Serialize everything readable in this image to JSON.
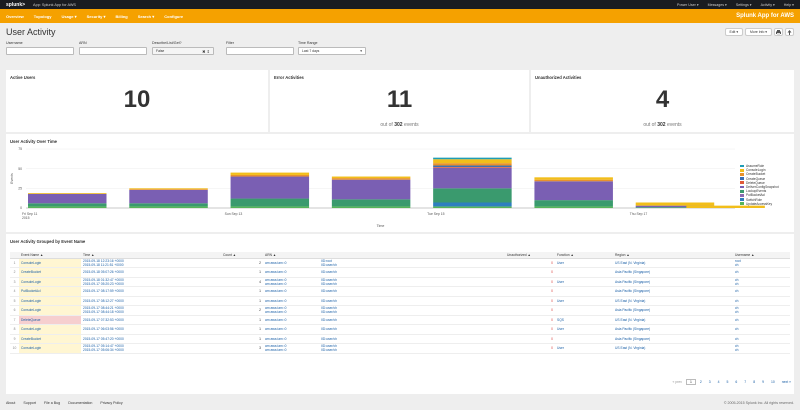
{
  "topbar": {
    "logo": "splunk>",
    "app_label": "App: Splunk App for AWS",
    "user": "Power User ▾",
    "messages": "Messages ▾",
    "settings": "Settings ▾",
    "activity": "Activity ▾",
    "help": "Help ▾"
  },
  "appbar": {
    "nav": [
      "Overview",
      "Topology",
      "Usage ▾",
      "Security ▾",
      "Billing",
      "Search ▾",
      "Configure"
    ],
    "brand": "Splunk App for AWS"
  },
  "header": {
    "title": "User Activity",
    "edit": "Edit ▾",
    "more_info": "More Info ▾"
  },
  "filters": [
    {
      "label": "Username",
      "value": ""
    },
    {
      "label": "ARN",
      "value": ""
    },
    {
      "label": "Describe/List/Get?",
      "value": "False"
    },
    {
      "label": "Filter",
      "value": ""
    },
    {
      "label": "Time Range",
      "value": "Last 7 days"
    }
  ],
  "kpis": [
    {
      "title": "Active Users",
      "value": "10",
      "sub_prefix": "",
      "sub_total": "",
      "sub_suffix": ""
    },
    {
      "title": "Error Activities",
      "value": "11",
      "sub_prefix": "out of ",
      "sub_total": "302",
      "sub_suffix": " events"
    },
    {
      "title": "Unauthorized Activities",
      "value": "4",
      "sub_prefix": "out of ",
      "sub_total": "302",
      "sub_suffix": " events"
    }
  ],
  "chart_data": {
    "type": "bar",
    "stacked": true,
    "title": "User Activity Over Time",
    "xlabel": "Time",
    "ylabel": "Events",
    "ylim": [
      0,
      75
    ],
    "yticks": [
      0,
      25,
      50,
      75
    ],
    "x_tick_labels": [
      {
        "idx": 0,
        "line1": "Fri Sep 11",
        "line2": "2015"
      },
      {
        "idx": 4,
        "line1": "Sun Sep 13",
        "line2": ""
      },
      {
        "idx": 8,
        "line1": "Tue Sep 15",
        "line2": ""
      },
      {
        "idx": 12,
        "line1": "Thu Sep 17",
        "line2": ""
      }
    ],
    "num_slots": 14,
    "bar_slots": [
      0,
      2,
      4,
      6,
      8,
      10,
      12,
      13
    ],
    "series": [
      {
        "name": "UpdateAccessKey",
        "color": "#56b45a",
        "values": [
          2,
          2,
          2,
          2,
          2,
          2,
          0,
          0
        ]
      },
      {
        "name": "SwitchRole",
        "color": "#2e7fbf",
        "values": [
          0,
          0,
          0,
          0,
          5,
          0,
          0,
          0
        ]
      },
      {
        "name": "PutBucketAcl",
        "color": "#8c6bb1",
        "values": [
          0,
          0,
          0,
          0,
          0,
          0,
          0,
          0
        ]
      },
      {
        "name": "LookupEvents",
        "color": "#3a9a6e",
        "values": [
          4,
          4,
          10,
          9,
          18,
          8,
          1,
          0
        ]
      },
      {
        "name": "DeliverConfigSnapshot",
        "color": "#7a5fb3",
        "values": [
          12,
          17,
          28,
          25,
          26,
          24,
          2,
          0
        ]
      },
      {
        "name": "DeleteQueue",
        "color": "#e05a3a",
        "values": [
          0,
          0,
          0,
          0,
          1,
          0,
          0,
          0
        ]
      },
      {
        "name": "CreateQueue",
        "color": "#3b6fb6",
        "values": [
          0,
          0,
          0,
          0,
          2,
          0,
          0,
          0
        ]
      },
      {
        "name": "CreateBucket",
        "color": "#e8912d",
        "values": [
          0,
          1,
          2,
          2,
          3,
          2,
          0,
          0
        ]
      },
      {
        "name": "ConsoleLogin",
        "color": "#f2be1a",
        "values": [
          1,
          1,
          3,
          2,
          5,
          3,
          4,
          3
        ]
      },
      {
        "name": "AssumeRole",
        "color": "#1f9db5",
        "values": [
          0,
          0,
          0,
          0,
          2,
          0,
          0,
          0
        ]
      }
    ]
  },
  "table": {
    "title": "User Activity Grouped by Event Name",
    "columns": [
      "",
      "Event Name ▲",
      "Time ▲",
      "Count ▲",
      "ARN ▲",
      "",
      "Unauthorized ▲",
      "Function ▲",
      "Region ▲",
      "Username ▲"
    ],
    "rows": [
      {
        "idx": "1",
        "event": "ConsoleLogin",
        "time1": "2015-09-18 12:23:16 +0000",
        "time2": "2015-09-18 11:21:51 +0000",
        "count": "2",
        "arn1": "arn:aws:iam::0",
        "arn2": "",
        "user1": "IID:root",
        "user2": "IID:user/ch",
        "unauth": "0",
        "func": "User",
        "region": "US East (N. Virginia)",
        "username1": "root",
        "username2": "ch",
        "red": false
      },
      {
        "idx": "2",
        "event": "CreateBucket",
        "time1": "2015-09-18 05:07:26 +0000",
        "time2": "",
        "count": "1",
        "arn1": "arn:aws:iam::0",
        "arn2": "",
        "user1": "IID:user/ch",
        "user2": "",
        "unauth": "0",
        "func": "",
        "region": "Asia Pacific (Singapore)",
        "username1": "ch",
        "username2": "",
        "red": false
      },
      {
        "idx": "3",
        "event": "ConsoleLogin",
        "time1": "2015-09-18 01:32:47 +0000",
        "time2": "2015-09-17 05:20:23 +0000",
        "count": "4",
        "arn1": "arn:aws:iam::0",
        "arn2": "arn:aws:iam::0",
        "user1": "IID:user/ch",
        "user2": "IID:user/ch",
        "unauth": "0",
        "func": "User",
        "region": "Asia Pacific (Singapore)",
        "username1": "ch",
        "username2": "ch",
        "red": false
      },
      {
        "idx": "4",
        "event": "PutBucketAcl",
        "time1": "2015-09-17 08:17:59 +0000",
        "time2": "",
        "count": "1",
        "arn1": "arn:aws:iam::0",
        "arn2": "",
        "user1": "IID:user/ch",
        "user2": "",
        "unauth": "0",
        "func": "",
        "region": "Asia Pacific (Singapore)",
        "username1": "ch",
        "username2": "",
        "red": false
      },
      {
        "idx": "5",
        "event": "ConsoleLogin",
        "time1": "2015-09-17 08:12:27 +0000",
        "time2": "",
        "count": "1",
        "arn1": "arn:aws:iam::0",
        "arn2": "",
        "user1": "IID:user/ch",
        "user2": "",
        "unauth": "0",
        "func": "User",
        "region": "US East (N. Virginia)",
        "username1": "ch",
        "username2": "",
        "red": false
      },
      {
        "idx": "6",
        "event": "ConsoleLogin",
        "time1": "2015-09-17 08:44:21 +0000",
        "time2": "2015-09-17 08:44:18 +0000",
        "count": "2",
        "arn1": "arn:aws:iam::0",
        "arn2": "arn:aws:iam::0",
        "user1": "IID:user/ch",
        "user2": "IID:user/ch",
        "unauth": "0",
        "func": "",
        "region": "Asia Pacific (Singapore)",
        "username1": "ch",
        "username2": "ch",
        "red": false
      },
      {
        "idx": "7",
        "event": "DeleteQueue",
        "time1": "2015-09-17 07:32:53 +0000",
        "time2": "",
        "count": "1",
        "arn1": "arn:aws:iam::0",
        "arn2": "",
        "user1": "IID:user/ch",
        "user2": "",
        "unauth": "0",
        "func": "SQS",
        "region": "US East (N. Virginia)",
        "username1": "ch",
        "username2": "",
        "red": true
      },
      {
        "idx": "8",
        "event": "ConsoleLogin",
        "time1": "2015-09-17 06:03:56 +0000",
        "time2": "",
        "count": "1",
        "arn1": "arn:aws:iam::0",
        "arn2": "",
        "user1": "IID:user/ch",
        "user2": "",
        "unauth": "0",
        "func": "User",
        "region": "Asia Pacific (Singapore)",
        "username1": "ch",
        "username2": "",
        "red": false
      },
      {
        "idx": "9",
        "event": "CreateBucket",
        "time1": "2015-09-17 05:47:20 +0000",
        "time2": "",
        "count": "1",
        "arn1": "arn:aws:iam::0",
        "arn2": "",
        "user1": "IID:user/ch",
        "user2": "",
        "unauth": "0",
        "func": "",
        "region": "Asia Pacific (Singapore)",
        "username1": "ch",
        "username2": "",
        "red": false
      },
      {
        "idx": "10",
        "event": "ConsoleLogin",
        "time1": "2015-09-17 05:14:47 +0000",
        "time2": "2015-09-17 05:06:34 +0000",
        "count": "3",
        "arn1": "arn:aws:iam::0",
        "arn2": "arn:aws:iam::0",
        "user1": "IID:user/ch",
        "user2": "IID:user/ch",
        "unauth": "0",
        "func": "User",
        "region": "US East (N. Virginia)",
        "username1": "ch",
        "username2": "ch",
        "red": false
      }
    ]
  },
  "pager": {
    "prev": "« prev",
    "pages": [
      "1",
      "2",
      "3",
      "4",
      "5",
      "6",
      "7",
      "8",
      "9",
      "10"
    ],
    "next": "next »"
  },
  "footer": {
    "links": [
      "About",
      "Support",
      "File a Bug",
      "Documentation",
      "Privacy Policy"
    ],
    "copyright": "© 2005-2015 Splunk Inc. All rights reserved."
  }
}
